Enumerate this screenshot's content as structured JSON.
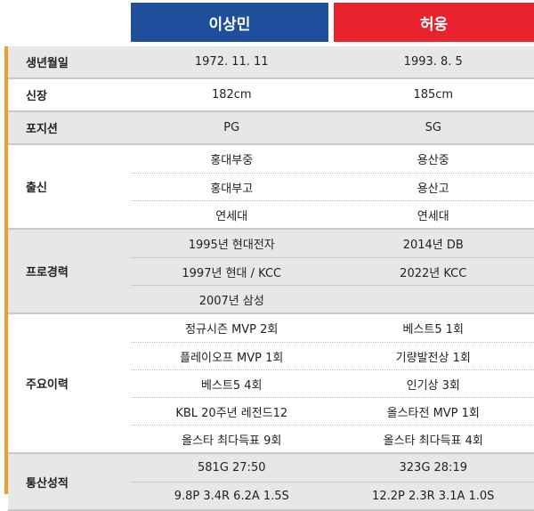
{
  "colors": {
    "lee": "#1f4e9c",
    "heo": "#e8232e",
    "accent": "#f39a2f",
    "gray": "#e6e7e8"
  },
  "header": {
    "player1": "이상민",
    "player2": "허웅"
  },
  "sections": [
    {
      "label": "생년월일",
      "gray": true,
      "rows": [
        [
          "1972. 11. 11",
          "1993. 8. 5"
        ]
      ]
    },
    {
      "label": "신장",
      "gray": false,
      "rows": [
        [
          "182cm",
          "185cm"
        ]
      ]
    },
    {
      "label": "포지션",
      "gray": true,
      "rows": [
        [
          "PG",
          "SG"
        ]
      ]
    },
    {
      "label": "출신",
      "gray": false,
      "rows": [
        [
          "홍대부중",
          "용산중"
        ],
        [
          "홍대부고",
          "용산고"
        ],
        [
          "연세대",
          "연세대"
        ]
      ]
    },
    {
      "label": "프로경력",
      "gray": true,
      "rows": [
        [
          "1995년 현대전자",
          "2014년 DB"
        ],
        [
          "1997년 현대 / KCC",
          "2022년 KCC"
        ],
        [
          "2007년 삼성",
          ""
        ]
      ]
    },
    {
      "label": "주요이력",
      "gray": false,
      "rows": [
        [
          "정규시즌 MVP 2회",
          "베스트5 1회"
        ],
        [
          "플레이오프 MVP 1회",
          "기량발전상 1회"
        ],
        [
          "베스트5 4회",
          "인기상 3회"
        ],
        [
          "KBL 20주년 레전드12",
          "올스타전 MVP 1회"
        ],
        [
          "올스타 최다득표 9회",
          "올스타 최다득표 4회"
        ]
      ]
    },
    {
      "label": "통산성적",
      "gray": true,
      "rows": [
        [
          "581G 27:50",
          "323G 28:19"
        ],
        [
          "9.8P 3.4R 6.2A 1.5S",
          "12.2P 2.3R 3.1A 1.0S"
        ]
      ]
    }
  ]
}
